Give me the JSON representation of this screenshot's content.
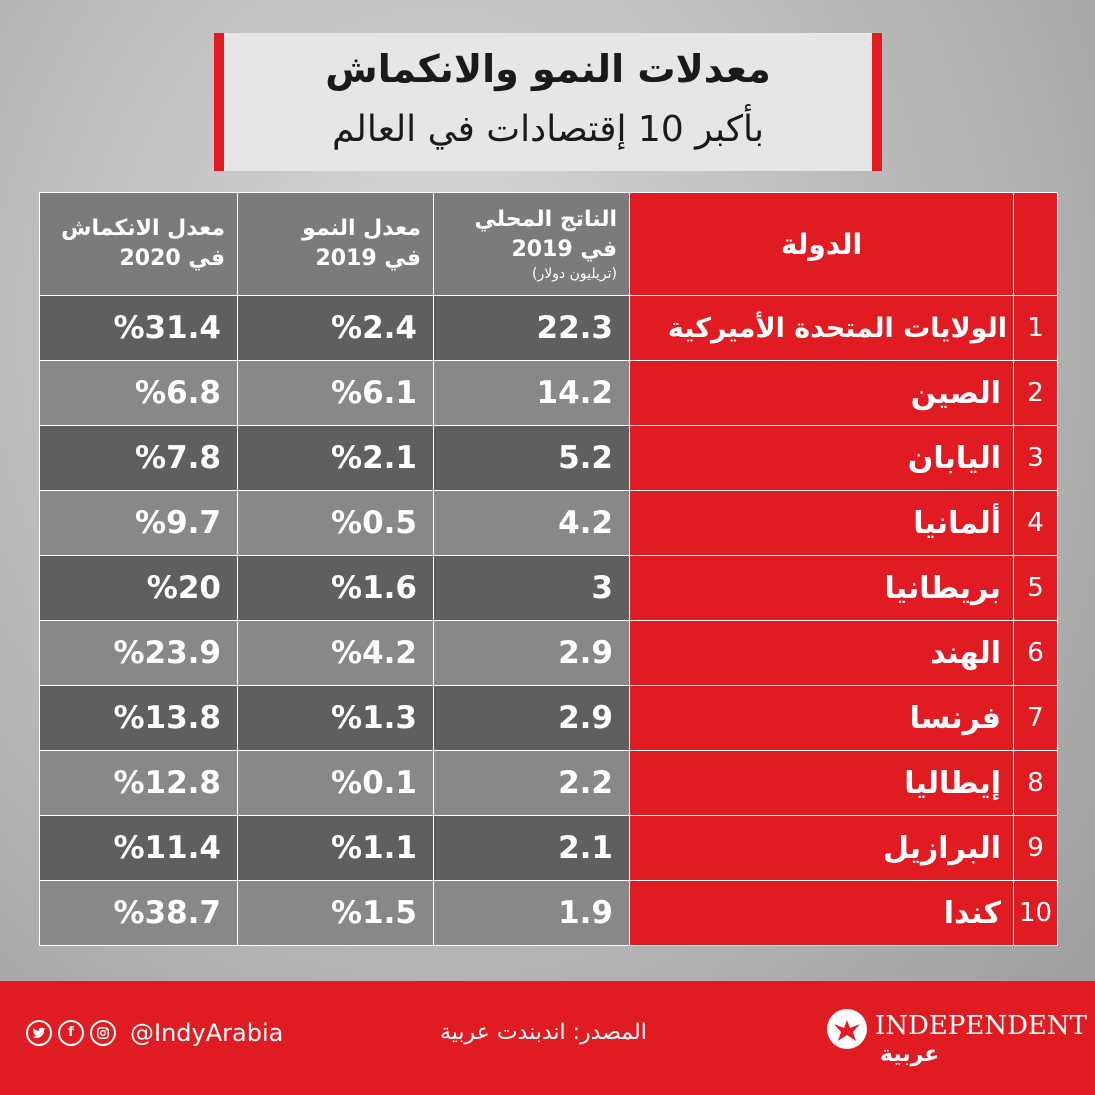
{
  "title": {
    "main": "معدلات النمو والانكماش",
    "sub": "بأكبر 10 إقتصادات في العالم"
  },
  "headers": {
    "country": "الدولة",
    "gdp_line1": "الناتج المحلي",
    "gdp_line2": "في 2019",
    "gdp_line3": "(تريليون دولار)",
    "growth_line1": "معدل النمو",
    "growth_line2": "في 2019",
    "contraction_line1": "معدل الانكماش",
    "contraction_line2": "في 2020"
  },
  "rows": [
    {
      "rank": "1",
      "country": "الولايات المتحدة الأميركية",
      "gdp": "22.3",
      "growth": "%2.4",
      "contraction": "%31.4"
    },
    {
      "rank": "2",
      "country": "الصين",
      "gdp": "14.2",
      "growth": "%6.1",
      "contraction": "%6.8"
    },
    {
      "rank": "3",
      "country": "اليابان",
      "gdp": "5.2",
      "growth": "%2.1",
      "contraction": "%7.8"
    },
    {
      "rank": "4",
      "country": "ألمانيا",
      "gdp": "4.2",
      "growth": "%0.5",
      "contraction": "%9.7"
    },
    {
      "rank": "5",
      "country": "بريطانيا",
      "gdp": "3",
      "growth": "%1.6",
      "contraction": "%20"
    },
    {
      "rank": "6",
      "country": "الهند",
      "gdp": "2.9",
      "growth": "%4.2",
      "contraction": "%23.9"
    },
    {
      "rank": "7",
      "country": "فرنسا",
      "gdp": "2.9",
      "growth": "%1.3",
      "contraction": "%13.8"
    },
    {
      "rank": "8",
      "country": "إيطاليا",
      "gdp": "2.2",
      "growth": "%0.1",
      "contraction": "%12.8"
    },
    {
      "rank": "9",
      "country": "البرازيل",
      "gdp": "2.1",
      "growth": "%1.1",
      "contraction": "%11.4"
    },
    {
      "rank": "10",
      "country": "كندا",
      "gdp": "1.9",
      "growth": "%1.5",
      "contraction": "%38.7"
    }
  ],
  "footer": {
    "handle": "@IndyArabia",
    "source": "المصدر: اندبندت عربية",
    "logo_en": "INDEPENDENT",
    "logo_ar": "عربية",
    "social_icons": [
      "twitter-icon",
      "facebook-icon",
      "instagram-icon"
    ]
  },
  "colors": {
    "accent_red": "#e11b22",
    "row_dark": "#5f5f5f",
    "row_light": "#888888",
    "header_gray": "#7b7b7b"
  }
}
